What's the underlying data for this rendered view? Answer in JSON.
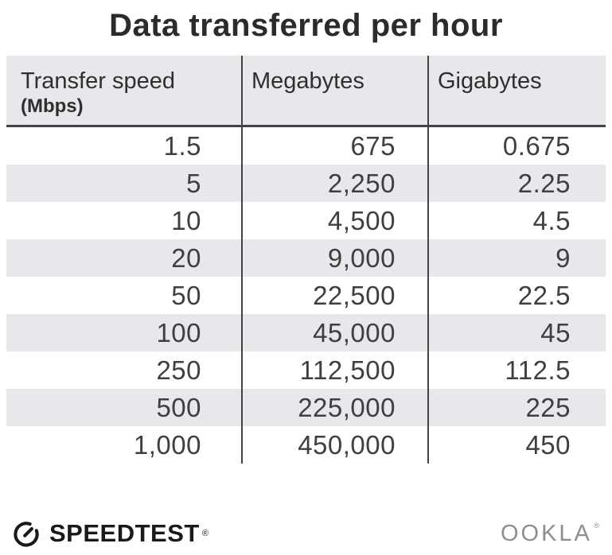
{
  "title": "Data transferred per hour",
  "chart_data": {
    "type": "table",
    "title": "Data transferred per hour",
    "columns": [
      "Transfer speed (Mbps)",
      "Megabytes",
      "Gigabytes"
    ],
    "rows": [
      [
        "1.5",
        "675",
        "0.675"
      ],
      [
        "5",
        "2,250",
        "2.25"
      ],
      [
        "10",
        "4,500",
        "4.5"
      ],
      [
        "20",
        "9,000",
        "9"
      ],
      [
        "50",
        "22,500",
        "22.5"
      ],
      [
        "100",
        "45,000",
        "45"
      ],
      [
        "250",
        "112,500",
        "112.5"
      ],
      [
        "500",
        "225,000",
        "225"
      ],
      [
        "1,000",
        "450,000",
        "450"
      ]
    ]
  },
  "table": {
    "header": {
      "col1_line1": "Transfer speed",
      "col1_line2": "(Mbps)",
      "col2": "Megabytes",
      "col3": "Gigabytes"
    },
    "rows": [
      [
        "1.5",
        "675",
        "0.675"
      ],
      [
        "5",
        "2,250",
        "2.25"
      ],
      [
        "10",
        "4,500",
        "4.5"
      ],
      [
        "20",
        "9,000",
        "9"
      ],
      [
        "50",
        "22,500",
        "22.5"
      ],
      [
        "100",
        "45,000",
        "45"
      ],
      [
        "250",
        "112,500",
        "112.5"
      ],
      [
        "500",
        "225,000",
        "225"
      ],
      [
        "1,000",
        "450,000",
        "450"
      ]
    ]
  },
  "footer": {
    "speedtest_label": "SPEEDTEST",
    "speedtest_registered": "®",
    "ookla_label": "OOKLA",
    "ookla_registered": "®"
  },
  "colors": {
    "stripe_gray": "#e8e8ec",
    "divider_dark": "#434343",
    "title_text": "#2b2b2b",
    "number_text": "#3f3f3f",
    "speedtest_black": "#1a1a1a",
    "ookla_gray": "#8e8e90"
  },
  "icons": {
    "speedtest_gauge": "gauge-icon"
  }
}
